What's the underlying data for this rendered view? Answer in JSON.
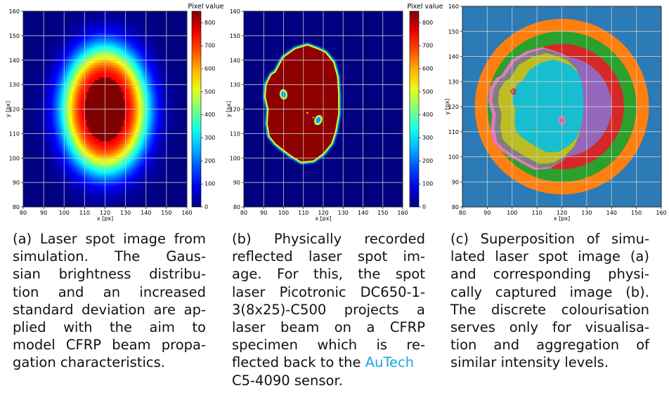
{
  "chart_data": [
    {
      "type": "heatmap",
      "panel_id": "a",
      "title": "",
      "xlabel": "x [px]",
      "ylabel": "y [px]",
      "xlim": [
        80,
        160
      ],
      "ylim": [
        80,
        160
      ],
      "x_ticks": [
        80,
        90,
        100,
        110,
        120,
        130,
        140,
        150,
        160
      ],
      "y_ticks": [
        80,
        90,
        100,
        110,
        120,
        130,
        140,
        150,
        160
      ],
      "grid": true,
      "colorscale": "jet",
      "colorbar": {
        "title": "Pixel value",
        "range": [
          0,
          850
        ],
        "ticks": [
          0,
          100,
          200,
          300,
          400,
          500,
          600,
          700,
          800
        ]
      },
      "distribution": "gaussian",
      "center": [
        120,
        120
      ],
      "saturated_semi_axes": [
        10,
        13
      ],
      "sigma": [
        13,
        15
      ]
    },
    {
      "type": "heatmap",
      "panel_id": "b",
      "title": "",
      "xlabel": "x [px]",
      "ylabel": "y [px]",
      "xlim": [
        80,
        160
      ],
      "ylim": [
        80,
        160
      ],
      "x_ticks": [
        80,
        90,
        100,
        110,
        120,
        130,
        140,
        150,
        160
      ],
      "y_ticks": [
        80,
        90,
        100,
        110,
        120,
        130,
        140,
        150,
        160
      ],
      "grid": true,
      "colorscale": "jet",
      "colorbar": {
        "title": "Pixel value",
        "range": [
          0,
          850
        ],
        "ticks": [
          0,
          100,
          200,
          300,
          400,
          500,
          600,
          700,
          800
        ]
      },
      "background_value": 0,
      "spot_value": 820,
      "spot_outline": [
        [
          96,
          135
        ],
        [
          100,
          141
        ],
        [
          106,
          144.5
        ],
        [
          112,
          146
        ],
        [
          117,
          144.5
        ],
        [
          121,
          143
        ],
        [
          125,
          139
        ],
        [
          127,
          133
        ],
        [
          127.5,
          126
        ],
        [
          127.5,
          118
        ],
        [
          126,
          111
        ],
        [
          124,
          106
        ],
        [
          120,
          102
        ],
        [
          115,
          99
        ],
        [
          109,
          98.5
        ],
        [
          104,
          101
        ],
        [
          99,
          104
        ],
        [
          96,
          106
        ],
        [
          93,
          109
        ],
        [
          92,
          114
        ],
        [
          92.5,
          120
        ],
        [
          91,
          125
        ],
        [
          91.5,
          130
        ],
        [
          94,
          134
        ]
      ],
      "holes": [
        [
          100,
          126
        ],
        [
          117.5,
          115.5
        ]
      ]
    },
    {
      "type": "heatmap",
      "panel_id": "c",
      "title": "",
      "xlabel": "x [px]",
      "ylabel": "y [px]",
      "xlim": [
        80,
        160
      ],
      "ylim": [
        80,
        160
      ],
      "x_ticks": [
        80,
        90,
        100,
        110,
        120,
        130,
        140,
        150,
        160
      ],
      "y_ticks": [
        80,
        90,
        100,
        110,
        120,
        130,
        140,
        150,
        160
      ],
      "grid": true,
      "colorbar": null,
      "level_colors": [
        "#2c7bb6",
        "#ff7f0e",
        "#2ca02c",
        "#d62728",
        "#9467bd",
        "#e377c2",
        "#7f7f7f",
        "#bcbd22",
        "#17becf"
      ],
      "ring_radii": [
        35,
        30,
        25,
        20
      ],
      "ring_center": [
        120,
        120
      ]
    }
  ],
  "captions": {
    "a": {
      "lines": [
        "(a) Laser spot image from",
        "simulation.  The Gaus-",
        "sian brightness distribu-",
        "tion and an increased",
        "standard deviation are ap-",
        "plied with the aim to",
        "model CFRP beam propa-",
        "gation characteristics."
      ]
    },
    "b": {
      "lines": [
        "(b)  Physically  recorded",
        "reflected laser spot im-",
        "age.  For this, the spot",
        "laser Picotronic DC650-1-",
        "3(8x25)-C500 projects a",
        "laser beam on a CFRP",
        "specimen which is re-",
        "flected back to the "
      ],
      "accent_word": "AuTech",
      "last_line": "C5-4090 sensor."
    },
    "c": {
      "lines": [
        "(c) Superposition of simu-",
        "lated laser spot image (a)",
        "and corresponding physi-",
        "cally captured image (b).",
        "The discrete colourisation",
        "serves only for visualisa-",
        "tion and aggregation of",
        "similar intensity levels."
      ]
    }
  },
  "colors": {
    "accent_link": "#1aa7e0",
    "grid": "#d0d0d0",
    "jet_low": "#00007f",
    "jet_high": "#7f0000"
  }
}
